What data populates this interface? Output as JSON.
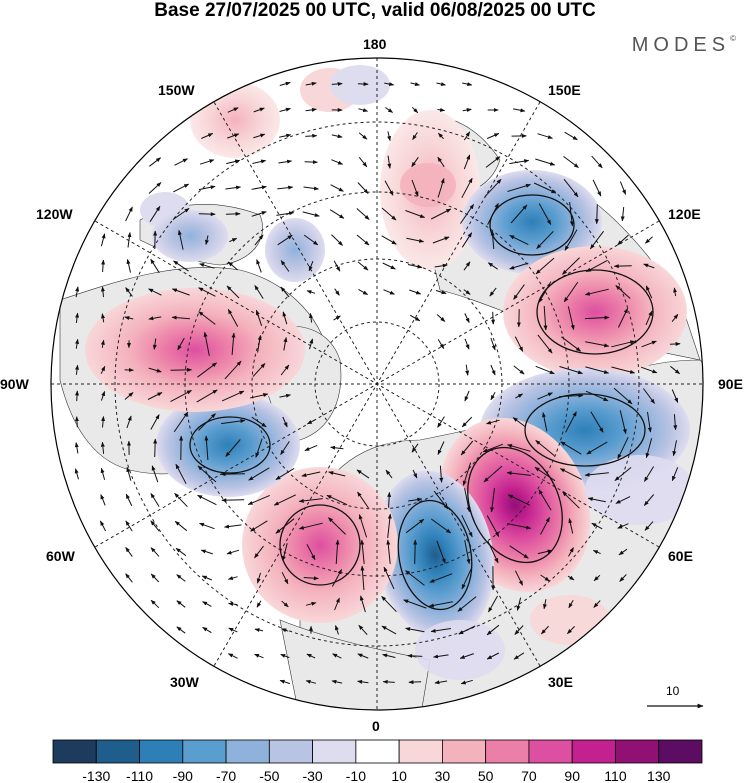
{
  "header": {
    "title": "Base 27/07/2025 00 UTC, valid 06/08/2025 00 UTC",
    "brand": "MODES",
    "brand_mark": "©"
  },
  "map": {
    "projection": "north-polar-stereographic",
    "meridian_labels": {
      "m180": "180",
      "m150e": "150E",
      "m120e": "120E",
      "m90e": "90E",
      "m60e": "60E",
      "m30e": "30E",
      "m0": "0",
      "m30w": "30W",
      "m60w": "60W",
      "m90w": "90W",
      "m120w": "120W",
      "m150w": "150W"
    },
    "reference_vector": "10"
  },
  "colorbar": {
    "tick_labels": [
      "-130",
      "-110",
      "-90",
      "-70",
      "-50",
      "-30",
      "-10",
      "10",
      "30",
      "50",
      "70",
      "90",
      "110",
      "130"
    ],
    "colors": [
      "#1d3b5c",
      "#1f5d8c",
      "#2e7fb8",
      "#5a9dcf",
      "#8fb2dc",
      "#b9c3e3",
      "#dedcef",
      "#ffffff",
      "#f8d7d8",
      "#f4b2bd",
      "#ec7fa8",
      "#dd4fa0",
      "#c2218f",
      "#901074",
      "#5c0c62"
    ]
  },
  "features": {
    "anomalies": [
      {
        "name": "anomaly-neg-120e",
        "value": -70
      },
      {
        "name": "anomaly-pos-105e",
        "value": 90
      },
      {
        "name": "anomaly-neg-85e",
        "value": -70
      },
      {
        "name": "anomaly-pos-55e",
        "value": 110
      },
      {
        "name": "anomaly-neg-25e",
        "value": -90
      },
      {
        "name": "anomaly-pos-20w",
        "value": 70
      },
      {
        "name": "anomaly-neg-60w",
        "value": -70
      },
      {
        "name": "anomaly-pos-90w",
        "value": 70
      },
      {
        "name": "anomaly-pos-165e",
        "value": 50
      },
      {
        "name": "anomaly-neg-125w",
        "value": -50
      },
      {
        "name": "anomaly-neg-115w",
        "value": -50
      }
    ]
  }
}
